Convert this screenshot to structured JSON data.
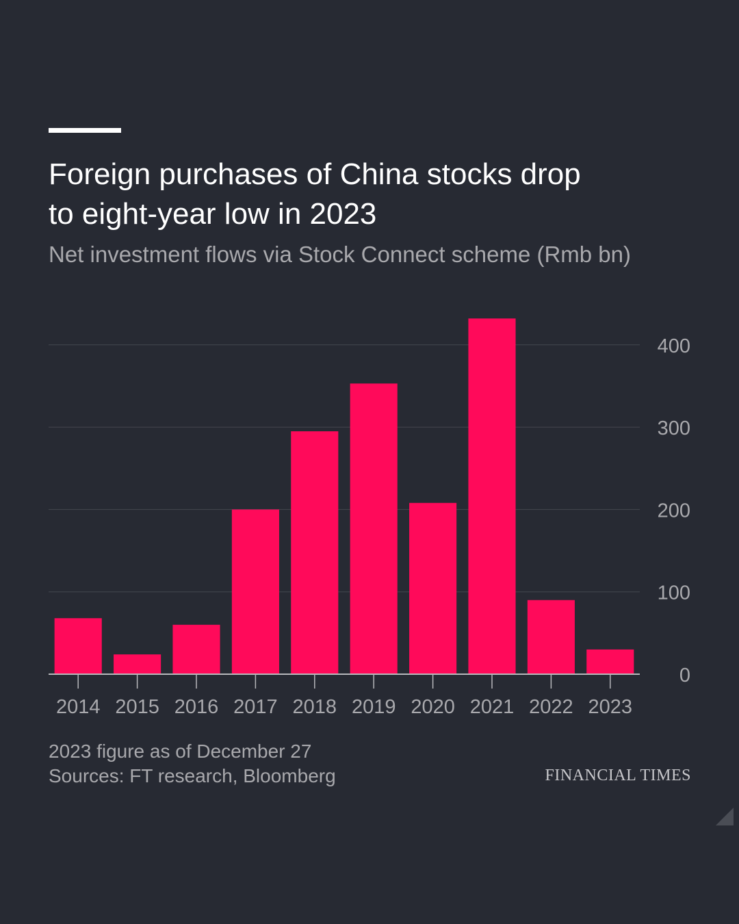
{
  "header": {
    "title_line1": "Foreign purchases of China stocks drop",
    "title_line2": "to eight-year low in 2023",
    "subtitle": "Net investment flows via Stock Connect scheme (Rmb bn)"
  },
  "footer": {
    "note": "2023 figure as of December 27",
    "sources": "Sources: FT research, Bloomberg",
    "brand": "FINANCIAL TIMES"
  },
  "colors": {
    "background": "#272a33",
    "bar": "#ff0a5a",
    "grid": "#44474f",
    "axis_text": "#a9a9ad",
    "title": "#ffffff"
  },
  "chart_data": {
    "type": "bar",
    "title": "Foreign purchases of China stocks drop to eight-year low in 2023",
    "subtitle": "Net investment flows via Stock Connect scheme (Rmb bn)",
    "xlabel": "",
    "ylabel": "Rmb bn",
    "categories": [
      "2014",
      "2015",
      "2016",
      "2017",
      "2018",
      "2019",
      "2020",
      "2021",
      "2022",
      "2023"
    ],
    "values": [
      68,
      24,
      60,
      200,
      295,
      353,
      208,
      432,
      90,
      30
    ],
    "ylim": [
      0,
      450
    ],
    "yticks": [
      0,
      100,
      200,
      300,
      400
    ],
    "y_axis_side": "right",
    "grid": true
  }
}
